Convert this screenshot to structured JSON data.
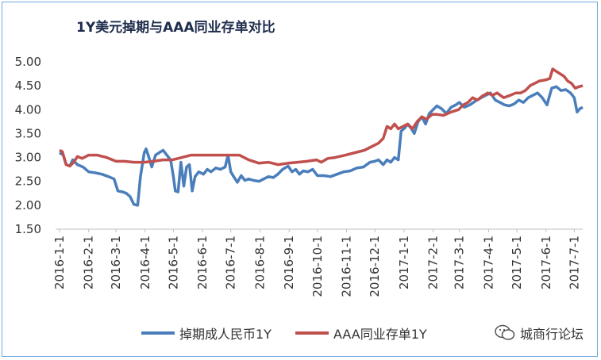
{
  "chart_data": {
    "type": "line",
    "title": "1Y美元掉期与AAA同业存单对比",
    "ylim": [
      1.5,
      5.0
    ],
    "yticks": [
      "5.00",
      "4.50",
      "4.00",
      "3.50",
      "3.00",
      "2.50",
      "2.00",
      "1.50"
    ],
    "x_tick_labels": [
      "2016-1-1",
      "2016-2-1",
      "2016-3-1",
      "2016-4-1",
      "2016-5-1",
      "2016-6-1",
      "2016-7-1",
      "2016-8-1",
      "2016-9-1",
      "2016-10-1",
      "2016-11-1",
      "2016-12-1",
      "2017-1-1",
      "2017-2-1",
      "2017-3-1",
      "2017-4-1",
      "2017-5-1",
      "2017-6-1",
      "2017-7-1"
    ],
    "x_range": [
      "2016-01-01",
      "2017-07-10"
    ],
    "grid": false,
    "legend_position": "bottom",
    "series": [
      {
        "name": "掉期成人民币1Y",
        "color": "#4a7ebb",
        "points": [
          [
            "2016-01-01",
            3.1
          ],
          [
            "2016-01-05",
            3.05
          ],
          [
            "2016-01-08",
            2.85
          ],
          [
            "2016-01-12",
            2.82
          ],
          [
            "2016-01-15",
            2.95
          ],
          [
            "2016-01-20",
            2.85
          ],
          [
            "2016-01-26",
            2.8
          ],
          [
            "2016-02-01",
            2.7
          ],
          [
            "2016-02-08",
            2.68
          ],
          [
            "2016-02-15",
            2.65
          ],
          [
            "2016-02-22",
            2.6
          ],
          [
            "2016-02-28",
            2.55
          ],
          [
            "2016-03-03",
            2.3
          ],
          [
            "2016-03-08",
            2.28
          ],
          [
            "2016-03-12",
            2.25
          ],
          [
            "2016-03-16",
            2.18
          ],
          [
            "2016-03-20",
            2.02
          ],
          [
            "2016-03-24",
            2.0
          ],
          [
            "2016-03-27",
            2.6
          ],
          [
            "2016-03-31",
            3.1
          ],
          [
            "2016-04-02",
            3.18
          ],
          [
            "2016-04-05",
            3.0
          ],
          [
            "2016-04-08",
            2.8
          ],
          [
            "2016-04-12",
            3.05
          ],
          [
            "2016-04-16",
            3.1
          ],
          [
            "2016-04-20",
            3.15
          ],
          [
            "2016-04-24",
            3.05
          ],
          [
            "2016-04-28",
            2.95
          ],
          [
            "2016-05-01",
            2.6
          ],
          [
            "2016-05-03",
            2.3
          ],
          [
            "2016-05-06",
            2.28
          ],
          [
            "2016-05-09",
            2.9
          ],
          [
            "2016-05-12",
            2.4
          ],
          [
            "2016-05-15",
            2.8
          ],
          [
            "2016-05-18",
            2.85
          ],
          [
            "2016-05-21",
            2.3
          ],
          [
            "2016-05-24",
            2.6
          ],
          [
            "2016-05-28",
            2.7
          ],
          [
            "2016-06-02",
            2.65
          ],
          [
            "2016-06-06",
            2.75
          ],
          [
            "2016-06-10",
            2.7
          ],
          [
            "2016-06-15",
            2.78
          ],
          [
            "2016-06-20",
            2.75
          ],
          [
            "2016-06-25",
            2.8
          ],
          [
            "2016-06-28",
            3.05
          ],
          [
            "2016-07-01",
            2.7
          ],
          [
            "2016-07-04",
            2.6
          ],
          [
            "2016-07-08",
            2.48
          ],
          [
            "2016-07-12",
            2.62
          ],
          [
            "2016-07-16",
            2.52
          ],
          [
            "2016-07-20",
            2.55
          ],
          [
            "2016-07-25",
            2.52
          ],
          [
            "2016-07-31",
            2.5
          ],
          [
            "2016-08-05",
            2.55
          ],
          [
            "2016-08-10",
            2.6
          ],
          [
            "2016-08-15",
            2.58
          ],
          [
            "2016-08-20",
            2.65
          ],
          [
            "2016-08-25",
            2.75
          ],
          [
            "2016-08-31",
            2.82
          ],
          [
            "2016-09-04",
            2.7
          ],
          [
            "2016-09-08",
            2.75
          ],
          [
            "2016-09-12",
            2.65
          ],
          [
            "2016-09-16",
            2.72
          ],
          [
            "2016-09-21",
            2.7
          ],
          [
            "2016-09-26",
            2.75
          ],
          [
            "2016-10-01",
            2.62
          ],
          [
            "2016-10-08",
            2.62
          ],
          [
            "2016-10-15",
            2.6
          ],
          [
            "2016-10-22",
            2.65
          ],
          [
            "2016-10-29",
            2.7
          ],
          [
            "2016-11-05",
            2.72
          ],
          [
            "2016-11-12",
            2.78
          ],
          [
            "2016-11-19",
            2.8
          ],
          [
            "2016-11-26",
            2.9
          ],
          [
            "2016-12-01",
            2.92
          ],
          [
            "2016-12-05",
            2.95
          ],
          [
            "2016-12-10",
            2.85
          ],
          [
            "2016-12-14",
            2.95
          ],
          [
            "2016-12-18",
            2.9
          ],
          [
            "2016-12-22",
            3.0
          ],
          [
            "2016-12-26",
            2.95
          ],
          [
            "2016-12-29",
            3.55
          ],
          [
            "2017-01-02",
            3.62
          ],
          [
            "2017-01-05",
            3.7
          ],
          [
            "2017-01-09",
            3.6
          ],
          [
            "2017-01-12",
            3.5
          ],
          [
            "2017-01-16",
            3.75
          ],
          [
            "2017-01-20",
            3.85
          ],
          [
            "2017-01-24",
            3.7
          ],
          [
            "2017-01-28",
            3.92
          ],
          [
            "2017-02-01",
            4.0
          ],
          [
            "2017-02-05",
            4.08
          ],
          [
            "2017-02-10",
            4.02
          ],
          [
            "2017-02-15",
            3.92
          ],
          [
            "2017-02-20",
            4.05
          ],
          [
            "2017-02-25",
            4.1
          ],
          [
            "2017-03-01",
            4.15
          ],
          [
            "2017-03-06",
            4.05
          ],
          [
            "2017-03-12",
            4.1
          ],
          [
            "2017-03-18",
            4.18
          ],
          [
            "2017-03-24",
            4.25
          ],
          [
            "2017-03-29",
            4.3
          ],
          [
            "2017-04-03",
            4.35
          ],
          [
            "2017-04-08",
            4.2
          ],
          [
            "2017-04-13",
            4.15
          ],
          [
            "2017-04-18",
            4.1
          ],
          [
            "2017-04-23",
            4.08
          ],
          [
            "2017-04-28",
            4.12
          ],
          [
            "2017-05-03",
            4.2
          ],
          [
            "2017-05-08",
            4.15
          ],
          [
            "2017-05-13",
            4.25
          ],
          [
            "2017-05-18",
            4.3
          ],
          [
            "2017-05-23",
            4.35
          ],
          [
            "2017-05-28",
            4.25
          ],
          [
            "2017-06-02",
            4.1
          ],
          [
            "2017-06-07",
            4.45
          ],
          [
            "2017-06-12",
            4.48
          ],
          [
            "2017-06-17",
            4.4
          ],
          [
            "2017-06-22",
            4.42
          ],
          [
            "2017-06-27",
            4.35
          ],
          [
            "2017-07-01",
            4.25
          ],
          [
            "2017-07-04",
            3.95
          ],
          [
            "2017-07-07",
            4.02
          ],
          [
            "2017-07-10",
            4.05
          ]
        ]
      },
      {
        "name": "AAA同业存单1Y",
        "color": "#c0504d",
        "points": [
          [
            "2016-01-01",
            3.15
          ],
          [
            "2016-01-04",
            3.12
          ],
          [
            "2016-01-08",
            2.85
          ],
          [
            "2016-01-12",
            2.82
          ],
          [
            "2016-01-16",
            2.9
          ],
          [
            "2016-01-20",
            3.02
          ],
          [
            "2016-01-25",
            2.98
          ],
          [
            "2016-02-01",
            3.05
          ],
          [
            "2016-02-10",
            3.05
          ],
          [
            "2016-02-20",
            3.0
          ],
          [
            "2016-03-01",
            2.92
          ],
          [
            "2016-03-10",
            2.92
          ],
          [
            "2016-03-20",
            2.9
          ],
          [
            "2016-03-31",
            2.9
          ],
          [
            "2016-04-10",
            2.92
          ],
          [
            "2016-04-20",
            2.95
          ],
          [
            "2016-04-30",
            2.95
          ],
          [
            "2016-05-10",
            3.0
          ],
          [
            "2016-05-20",
            3.05
          ],
          [
            "2016-05-31",
            3.05
          ],
          [
            "2016-06-10",
            3.05
          ],
          [
            "2016-06-20",
            3.05
          ],
          [
            "2016-06-30",
            3.05
          ],
          [
            "2016-07-10",
            3.05
          ],
          [
            "2016-07-20",
            2.95
          ],
          [
            "2016-07-31",
            2.88
          ],
          [
            "2016-08-10",
            2.9
          ],
          [
            "2016-08-20",
            2.85
          ],
          [
            "2016-08-31",
            2.88
          ],
          [
            "2016-09-10",
            2.9
          ],
          [
            "2016-09-20",
            2.92
          ],
          [
            "2016-09-30",
            2.95
          ],
          [
            "2016-10-05",
            2.9
          ],
          [
            "2016-10-12",
            2.98
          ],
          [
            "2016-10-20",
            3.0
          ],
          [
            "2016-10-31",
            3.05
          ],
          [
            "2016-11-10",
            3.1
          ],
          [
            "2016-11-20",
            3.15
          ],
          [
            "2016-11-30",
            3.25
          ],
          [
            "2016-12-05",
            3.3
          ],
          [
            "2016-12-10",
            3.4
          ],
          [
            "2016-12-14",
            3.65
          ],
          [
            "2016-12-18",
            3.6
          ],
          [
            "2016-12-22",
            3.7
          ],
          [
            "2016-12-26",
            3.6
          ],
          [
            "2016-12-31",
            3.65
          ],
          [
            "2017-01-05",
            3.7
          ],
          [
            "2017-01-10",
            3.6
          ],
          [
            "2017-01-15",
            3.75
          ],
          [
            "2017-01-20",
            3.85
          ],
          [
            "2017-01-25",
            3.8
          ],
          [
            "2017-01-31",
            3.9
          ],
          [
            "2017-02-05",
            3.9
          ],
          [
            "2017-02-12",
            3.88
          ],
          [
            "2017-02-20",
            3.95
          ],
          [
            "2017-02-28",
            4.0
          ],
          [
            "2017-03-05",
            4.1
          ],
          [
            "2017-03-10",
            4.15
          ],
          [
            "2017-03-15",
            4.25
          ],
          [
            "2017-03-20",
            4.2
          ],
          [
            "2017-03-25",
            4.28
          ],
          [
            "2017-03-31",
            4.35
          ],
          [
            "2017-04-05",
            4.3
          ],
          [
            "2017-04-10",
            4.35
          ],
          [
            "2017-04-17",
            4.25
          ],
          [
            "2017-04-24",
            4.3
          ],
          [
            "2017-04-30",
            4.35
          ],
          [
            "2017-05-05",
            4.35
          ],
          [
            "2017-05-10",
            4.4
          ],
          [
            "2017-05-15",
            4.5
          ],
          [
            "2017-05-20",
            4.55
          ],
          [
            "2017-05-25",
            4.6
          ],
          [
            "2017-05-31",
            4.62
          ],
          [
            "2017-06-05",
            4.65
          ],
          [
            "2017-06-08",
            4.85
          ],
          [
            "2017-06-12",
            4.8
          ],
          [
            "2017-06-16",
            4.75
          ],
          [
            "2017-06-20",
            4.7
          ],
          [
            "2017-06-24",
            4.6
          ],
          [
            "2017-06-28",
            4.55
          ],
          [
            "2017-07-02",
            4.45
          ],
          [
            "2017-07-06",
            4.48
          ],
          [
            "2017-07-10",
            4.5
          ]
        ]
      }
    ]
  },
  "watermark": {
    "text": "城商行论坛",
    "icon": "wechat-icon"
  }
}
